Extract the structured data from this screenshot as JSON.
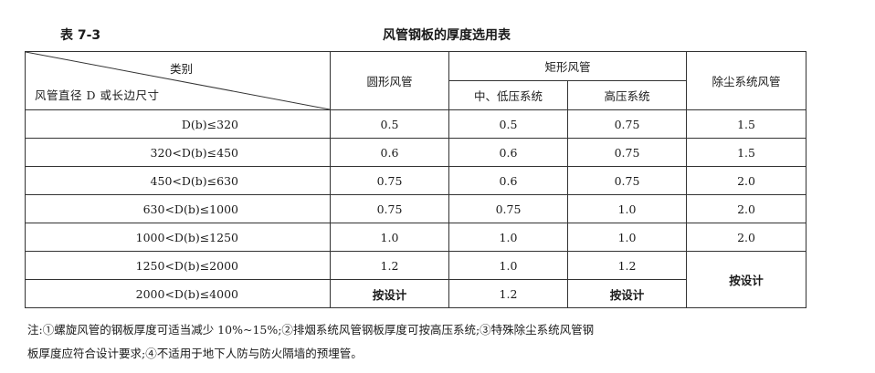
{
  "table_no": "表 7-3",
  "title": "风管钢板的厚度选用表",
  "header": {
    "diag_top": "类别",
    "diag_bottom": "风管直径 D 或长边尺寸",
    "round": "圆形风管",
    "rect": "矩形风管",
    "rect_low": "中、低压系统",
    "rect_high": "高压系统",
    "dust": "除尘系统风管"
  },
  "rows": [
    {
      "range": "D(b)≤320",
      "round": "0.5",
      "low": "0.5",
      "high": "0.75",
      "dust": "1.5"
    },
    {
      "range": "320<D(b)≤450",
      "round": "0.6",
      "low": "0.6",
      "high": "0.75",
      "dust": "1.5"
    },
    {
      "range": "450<D(b)≤630",
      "round": "0.75",
      "low": "0.6",
      "high": "0.75",
      "dust": "2.0"
    },
    {
      "range": "630<D(b)≤1000",
      "round": "0.75",
      "low": "0.75",
      "high": "1.0",
      "dust": "2.0"
    },
    {
      "range": "1000<D(b)≤1250",
      "round": "1.0",
      "low": "1.0",
      "high": "1.0",
      "dust": "2.0"
    },
    {
      "range": "1250<D(b)≤2000",
      "round": "1.2",
      "low": "1.0",
      "high": "1.2",
      "dust": "按设计"
    },
    {
      "range": "2000<D(b)≤4000",
      "round": "按设计",
      "low": "1.2",
      "high": "按设计"
    }
  ],
  "note_line1": "注:①螺旋风管的钢板厚度可适当减少 10%~15%;②排烟系统风管钢板厚度可按高压系统;③特殊除尘系统风管钢",
  "note_line2": "板厚度应符合设计要求;④不适用于地下人防与防火隔墙的预埋管。"
}
